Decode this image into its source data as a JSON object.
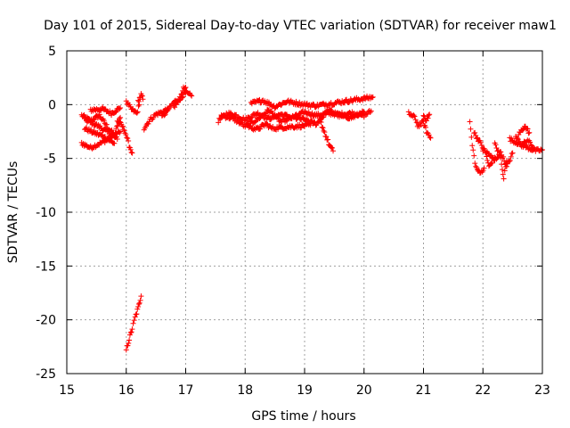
{
  "chart_data": {
    "type": "scatter",
    "title": "Day 101 of 2015, Sidereal Day-to-day VTEC variation (SDTVAR) for receiver maw1",
    "xlabel": "GPS time / hours",
    "ylabel": "SDTVAR / TECUs",
    "xlim": [
      15,
      23
    ],
    "ylim": [
      -25,
      5
    ],
    "xticks": [
      "15",
      "16",
      "17",
      "18",
      "19",
      "20",
      "21",
      "22",
      "23"
    ],
    "yticks": [
      "5",
      "0",
      "-5",
      "-10",
      "-15",
      "-20",
      "-25"
    ],
    "grid": true,
    "marker": "+",
    "color": "#ff0000",
    "segments": [
      {
        "x": [
          15.25,
          15.4,
          15.55,
          15.7,
          15.8,
          15.9
        ],
        "y": [
          -1.0,
          -1.5,
          -1.0,
          -2.2,
          -2.8,
          -1.2
        ]
      },
      {
        "x": [
          15.25,
          15.4,
          15.6,
          15.75,
          15.9
        ],
        "y": [
          -3.6,
          -4.0,
          -3.5,
          -3.0,
          -2.5
        ]
      },
      {
        "x": [
          15.3,
          15.5,
          15.7,
          15.85
        ],
        "y": [
          -1.4,
          -1.9,
          -2.6,
          -3.2
        ]
      },
      {
        "x": [
          15.4,
          15.6,
          15.75,
          15.9
        ],
        "y": [
          -0.5,
          -0.4,
          -0.8,
          -0.3
        ]
      },
      {
        "x": [
          15.3,
          15.45,
          15.6,
          15.8
        ],
        "y": [
          -2.2,
          -2.6,
          -2.9,
          -3.6
        ]
      },
      {
        "x": [
          15.85,
          15.92,
          15.97
        ],
        "y": [
          -1.5,
          -1.9,
          -2.4
        ]
      },
      {
        "x": [
          15.98,
          16.05,
          16.1
        ],
        "y": [
          -2.5,
          -3.8,
          -4.5
        ]
      },
      {
        "x": [
          16.0,
          16.1,
          16.18,
          16.22
        ],
        "y": [
          0.2,
          -0.5,
          -0.8,
          0.0
        ]
      },
      {
        "x": [
          16.2,
          16.25,
          16.28
        ],
        "y": [
          0.3,
          0.9,
          0.5
        ]
      },
      {
        "x": [
          16.0,
          16.05,
          16.1,
          16.15,
          16.2,
          16.25
        ],
        "y": [
          -22.8,
          -21.8,
          -20.8,
          -19.8,
          -18.9,
          -17.8
        ]
      },
      {
        "x": [
          16.3,
          16.4,
          16.5,
          16.6,
          16.7
        ],
        "y": [
          -2.2,
          -1.4,
          -0.9,
          -0.7,
          -0.4
        ]
      },
      {
        "x": [
          16.6,
          16.7,
          16.8,
          16.9,
          17.0,
          17.1
        ],
        "y": [
          -1.2,
          -0.5,
          0.2,
          0.6,
          1.1,
          0.8
        ]
      },
      {
        "x": [
          16.8,
          16.9,
          16.95,
          17.0
        ],
        "y": [
          -0.2,
          0.4,
          1.4,
          1.6
        ]
      },
      {
        "x": [
          17.55,
          17.7,
          17.85,
          18.0,
          18.2,
          18.4,
          18.6,
          18.8,
          19.0,
          19.2,
          19.4,
          19.6,
          19.8,
          20.0,
          20.12
        ],
        "y": [
          -1.5,
          -0.8,
          -1.0,
          -1.4,
          -0.8,
          -1.3,
          -0.9,
          -1.2,
          -0.7,
          -1.0,
          -0.8,
          -0.9,
          -0.8,
          -1.0,
          -0.6
        ]
      },
      {
        "x": [
          17.6,
          17.8,
          18.0,
          18.2,
          18.4,
          18.6,
          18.8,
          19.0,
          19.2,
          19.4,
          19.6,
          19.8,
          20.0
        ],
        "y": [
          -1.0,
          -1.3,
          -2.0,
          -1.4,
          -0.5,
          -1.6,
          -1.2,
          -1.4,
          -1.8,
          -0.5,
          -1.1,
          -1.2,
          -0.7
        ]
      },
      {
        "x": [
          18.1,
          18.3,
          18.5,
          18.7,
          19.0,
          19.2,
          20.15
        ],
        "y": [
          0.1,
          0.4,
          -0.2,
          0.3,
          0.0,
          -0.1,
          0.7
        ]
      },
      {
        "x": [
          18.05,
          18.2,
          18.35,
          18.45,
          18.9,
          19.1
        ],
        "y": [
          -2.0,
          -2.3,
          -1.8,
          -2.2,
          -2.0,
          -1.9
        ]
      },
      {
        "x": [
          19.25,
          19.35,
          19.42,
          19.48
        ],
        "y": [
          -1.3,
          -2.8,
          -3.8,
          -4.3
        ]
      },
      {
        "x": [
          20.75,
          20.85,
          20.9
        ],
        "y": [
          -0.8,
          -1.2,
          -1.7
        ]
      },
      {
        "x": [
          20.9,
          21.0,
          21.05,
          21.12
        ],
        "y": [
          -2.0,
          -1.6,
          -2.5,
          -3.1
        ]
      },
      {
        "x": [
          21.0,
          21.05,
          21.1
        ],
        "y": [
          -1.0,
          -1.4,
          -0.9
        ]
      },
      {
        "x": [
          21.78,
          21.82,
          21.88,
          21.95,
          22.02
        ],
        "y": [
          -1.6,
          -3.8,
          -5.8,
          -6.4,
          -5.9
        ]
      },
      {
        "x": [
          21.85,
          21.95,
          22.05,
          22.1,
          22.2
        ],
        "y": [
          -2.6,
          -3.5,
          -4.5,
          -5.8,
          -4.9
        ]
      },
      {
        "x": [
          22.0,
          22.1,
          22.2,
          22.3,
          22.4,
          22.5
        ],
        "y": [
          -4.2,
          -4.6,
          -5.2,
          -4.4,
          -5.8,
          -4.5
        ]
      },
      {
        "x": [
          22.2,
          22.3,
          22.35,
          22.4
        ],
        "y": [
          -3.6,
          -5.0,
          -6.8,
          -5.2
        ]
      },
      {
        "x": [
          22.45,
          22.6,
          22.75,
          22.9,
          23.0
        ],
        "y": [
          -3.2,
          -3.6,
          -4.0,
          -4.3,
          -4.2
        ]
      },
      {
        "x": [
          22.6,
          22.7,
          22.78
        ],
        "y": [
          -2.8,
          -2.0,
          -2.6
        ]
      },
      {
        "x": [
          22.55,
          22.65,
          22.75,
          22.85
        ],
        "y": [
          -3.0,
          -3.8,
          -3.3,
          -4.0
        ]
      }
    ]
  }
}
